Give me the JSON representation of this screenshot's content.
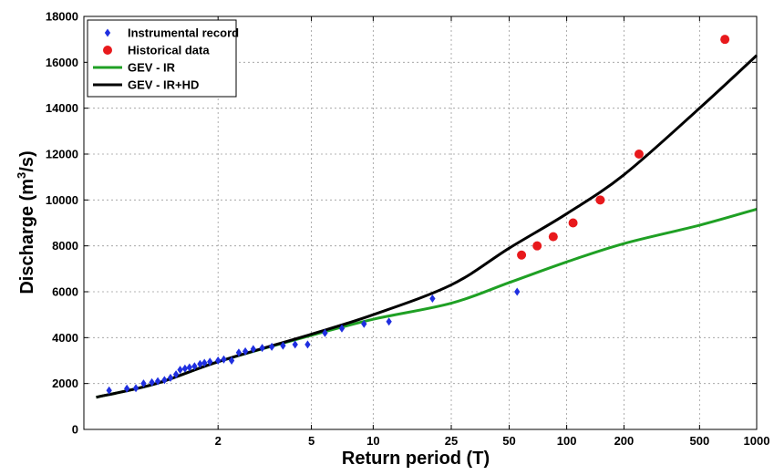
{
  "chart_data": {
    "type": "scatter",
    "xlabel": "Return period (T)",
    "ylabel": "Discharge (m³/s)",
    "ylabel_parts": {
      "main": "Discharge (m",
      "superscript": "3",
      "tail": "/s)"
    },
    "x_scale": "log-reduced-variate (Gumbel)",
    "xlim": [
      1.03,
      1000
    ],
    "ylim": [
      0,
      18000
    ],
    "x_ticks": [
      2,
      5,
      10,
      25,
      50,
      100,
      200,
      500,
      1000
    ],
    "x_tick_labels": [
      "2",
      "5",
      "10",
      "25",
      "50",
      "100",
      "200",
      "500",
      "1000"
    ],
    "y_ticks": [
      0,
      2000,
      4000,
      6000,
      8000,
      10000,
      12000,
      14000,
      16000,
      18000
    ],
    "y_tick_labels": [
      "0",
      "2000",
      "4000",
      "6000",
      "8000",
      "10000",
      "12000",
      "14000",
      "16000",
      "18000"
    ],
    "grid": true,
    "legend_position": "top-left",
    "legend": [
      {
        "label": "Instrumental record",
        "marker": "diamond",
        "color": "#1f2fe0"
      },
      {
        "label": "Historical data",
        "marker": "circle",
        "color": "#e8191c"
      },
      {
        "label": "GEV - IR",
        "marker": "line",
        "color": "#1fa024"
      },
      {
        "label": "GEV - IR+HD",
        "marker": "line",
        "color": "#000000"
      }
    ],
    "series": [
      {
        "name": "Instrumental record",
        "kind": "points",
        "marker": "diamond",
        "color": "#1f2fe0",
        "points": [
          [
            1.08,
            1700
          ],
          [
            1.14,
            1780
          ],
          [
            1.18,
            1800
          ],
          [
            1.22,
            2000
          ],
          [
            1.27,
            2050
          ],
          [
            1.31,
            2100
          ],
          [
            1.36,
            2150
          ],
          [
            1.41,
            2250
          ],
          [
            1.46,
            2400
          ],
          [
            1.5,
            2600
          ],
          [
            1.55,
            2650
          ],
          [
            1.6,
            2700
          ],
          [
            1.66,
            2750
          ],
          [
            1.73,
            2850
          ],
          [
            1.79,
            2900
          ],
          [
            1.87,
            2950
          ],
          [
            2.0,
            3000
          ],
          [
            2.1,
            3050
          ],
          [
            2.25,
            3000
          ],
          [
            2.4,
            3350
          ],
          [
            2.55,
            3400
          ],
          [
            2.75,
            3500
          ],
          [
            3.0,
            3550
          ],
          [
            3.3,
            3600
          ],
          [
            3.7,
            3650
          ],
          [
            4.2,
            3700
          ],
          [
            4.8,
            3700
          ],
          [
            5.8,
            4200
          ],
          [
            7.0,
            4400
          ],
          [
            9.0,
            4600
          ],
          [
            12.0,
            4700
          ],
          [
            20.0,
            5700
          ],
          [
            55.0,
            6000
          ]
        ]
      },
      {
        "name": "Historical data",
        "kind": "points",
        "marker": "circle",
        "color": "#e8191c",
        "points": [
          [
            58,
            7600
          ],
          [
            70,
            8000
          ],
          [
            85,
            8400
          ],
          [
            108,
            9000
          ],
          [
            150,
            10000
          ],
          [
            240,
            12000
          ],
          [
            680,
            17000
          ]
        ]
      },
      {
        "name": "GEV - IR",
        "kind": "line",
        "color": "#1fa024",
        "points": [
          [
            1.05,
            1400
          ],
          [
            1.3,
            2000
          ],
          [
            2.0,
            2950
          ],
          [
            5.0,
            4100
          ],
          [
            10.0,
            4800
          ],
          [
            25.0,
            5500
          ],
          [
            50.0,
            6400
          ],
          [
            100.0,
            7300
          ],
          [
            200.0,
            8100
          ],
          [
            500.0,
            8900
          ],
          [
            1000.0,
            9600
          ]
        ]
      },
      {
        "name": "GEV - IR+HD",
        "kind": "line",
        "color": "#000000",
        "points": [
          [
            1.05,
            1400
          ],
          [
            1.3,
            2000
          ],
          [
            2.0,
            2950
          ],
          [
            5.0,
            4150
          ],
          [
            10.0,
            5000
          ],
          [
            25.0,
            6300
          ],
          [
            50.0,
            7900
          ],
          [
            100.0,
            9400
          ],
          [
            200.0,
            11100
          ],
          [
            500.0,
            14000
          ],
          [
            1000.0,
            16300
          ]
        ]
      }
    ]
  }
}
